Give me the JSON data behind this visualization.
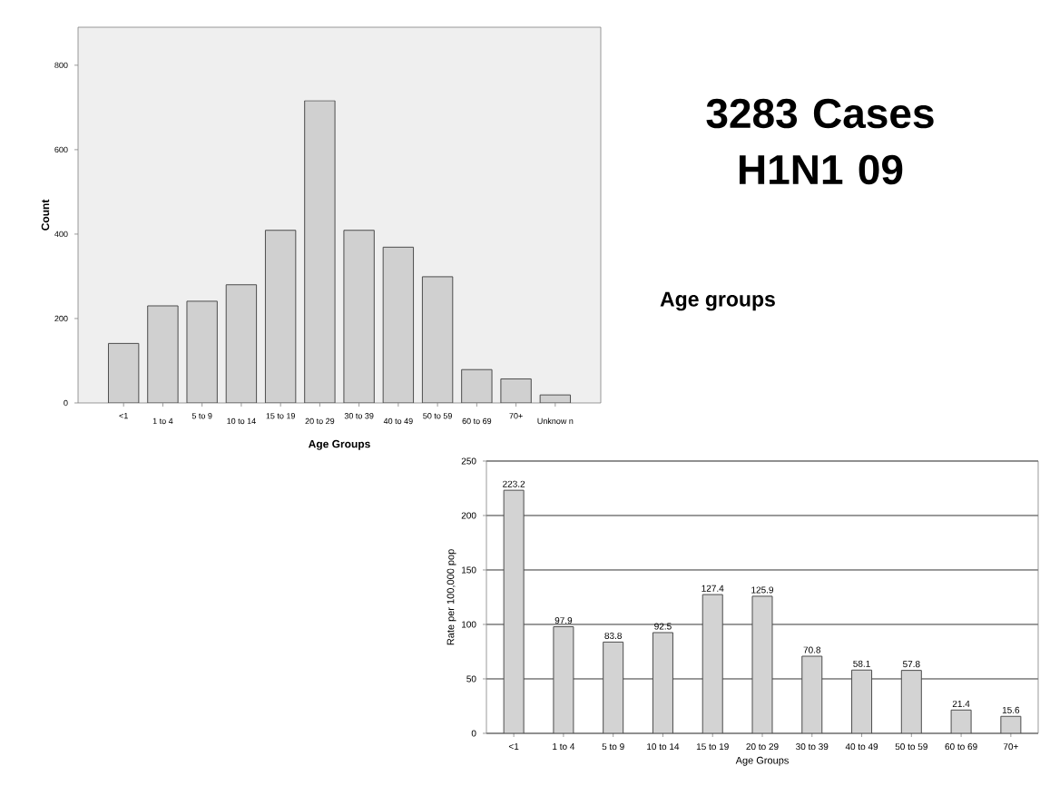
{
  "chart_data": [
    {
      "type": "bar",
      "xlabel": "Age Groups",
      "ylabel": "Count",
      "categories": [
        "<1",
        "1 to 4",
        "5 to 9",
        "10 to 14",
        "15 to 19",
        "20 to 29",
        "30 to 39",
        "40 to 49",
        "50 to 59",
        "60 to 69",
        "70+",
        "Unknow n"
      ],
      "values": [
        141,
        230,
        241,
        280,
        409,
        716,
        409,
        369,
        299,
        79,
        57,
        19
      ],
      "color": "#d0d0d0",
      "ylim": [
        0,
        890
      ],
      "yticks": [
        0,
        200,
        400,
        600,
        800
      ]
    },
    {
      "type": "bar",
      "xlabel": "Age Groups",
      "ylabel": "Rate per 100,000 pop",
      "categories": [
        "<1",
        "1 to 4",
        "5 to 9",
        "10 to 14",
        "15 to 19",
        "20 to 29",
        "30 to 39",
        "40 to 49",
        "50 to 59",
        "60 to 69",
        "70+"
      ],
      "values": [
        223.2,
        97.9,
        83.8,
        92.5,
        127.4,
        125.9,
        70.8,
        58.1,
        57.8,
        21.4,
        15.6
      ],
      "color": "#d3d3d3",
      "ylim": [
        0,
        250
      ],
      "yticks": [
        0,
        50,
        100,
        150,
        200,
        250
      ],
      "grid": "y",
      "data_labels": true
    },
    {
      "type": "other",
      "title": "3283 Cases H1N1 09",
      "subtitle": "Age groups"
    }
  ]
}
